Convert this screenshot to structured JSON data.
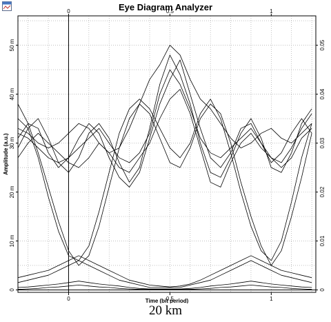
{
  "window": {
    "title": "Eye Diagram Analyzer",
    "icon": "app-window-icon"
  },
  "caption": "20 km",
  "chart_data": {
    "type": "line",
    "title": "Eye Diagram Analyzer",
    "xlabel": "Time (bit period)",
    "ylabel": "Amplitude (a.u.)",
    "xlim": [
      -0.25,
      1.22
    ],
    "ylim_left": [
      -0.5,
      56
    ],
    "ylim_right": [
      -0.0005,
      0.056
    ],
    "x_ticks_bottom": [
      {
        "value": 0,
        "label": "0"
      },
      {
        "value": 0.5,
        "label": "0.5"
      },
      {
        "value": 1,
        "label": "1"
      }
    ],
    "x_ticks_top": [
      {
        "value": 0,
        "label": "0"
      },
      {
        "value": 0.5,
        "label": "0.5"
      },
      {
        "value": 1,
        "label": "1"
      }
    ],
    "y_ticks_left": [
      {
        "value": 0,
        "label": "0"
      },
      {
        "value": 10,
        "label": "10 m"
      },
      {
        "value": 20,
        "label": "20 m"
      },
      {
        "value": 30,
        "label": "30 m"
      },
      {
        "value": 40,
        "label": "40 m"
      },
      {
        "value": 50,
        "label": "50 m"
      }
    ],
    "y_ticks_right": [
      {
        "value": 0,
        "label": "0"
      },
      {
        "value": 0.01,
        "label": "0.01"
      },
      {
        "value": 0.02,
        "label": "0.02"
      },
      {
        "value": 0.03,
        "label": "0.03"
      },
      {
        "value": 0.04,
        "label": "0.04"
      },
      {
        "value": 0.05,
        "label": "0.05"
      }
    ],
    "grid": true,
    "grid_style": "dotted",
    "trace_color": "#000000",
    "series": [
      {
        "x": [
          -0.25,
          -0.2,
          -0.15,
          -0.1,
          -0.05,
          0,
          0.05,
          0.1,
          0.15,
          0.2,
          0.25,
          0.3,
          0.35,
          0.4,
          0.45,
          0.5,
          0.55,
          0.6,
          0.65,
          0.7,
          0.75,
          0.8,
          0.85,
          0.9,
          0.95,
          1,
          1.05,
          1.1,
          1.15,
          1.2
        ],
        "y": [
          38,
          34,
          28,
          21,
          14,
          8,
          5,
          7,
          13,
          21,
          29,
          35,
          38,
          36,
          31,
          26,
          25,
          29,
          35,
          38,
          36,
          30,
          22,
          15,
          9,
          5,
          8,
          15,
          23,
          32
        ]
      },
      {
        "x": [
          -0.25,
          -0.2,
          -0.15,
          -0.1,
          -0.05,
          0,
          0.05,
          0.1,
          0.15,
          0.2,
          0.25,
          0.3,
          0.35,
          0.4,
          0.45,
          0.5,
          0.55,
          0.6,
          0.65,
          0.7,
          0.75,
          0.8,
          0.85,
          0.9,
          0.95,
          1,
          1.05,
          1.1,
          1.15,
          1.2
        ],
        "y": [
          35,
          33,
          27,
          19,
          12,
          7,
          6,
          9,
          16,
          24,
          32,
          37,
          39,
          37,
          33,
          29,
          27,
          30,
          36,
          39,
          35,
          28,
          20,
          13,
          8,
          6,
          10,
          18,
          27,
          34
        ]
      },
      {
        "x": [
          -0.25,
          -0.2,
          -0.15,
          -0.1,
          -0.05,
          0,
          0.05,
          0.1,
          0.15,
          0.2,
          0.25,
          0.3,
          0.35,
          0.4,
          0.45,
          0.5,
          0.55,
          0.6,
          0.65,
          0.7,
          0.75,
          0.8,
          0.85,
          0.9,
          0.95,
          1,
          1.05,
          1.1,
          1.15,
          1.2
        ],
        "y": [
          32,
          31,
          29,
          27,
          26,
          27,
          29,
          31,
          33,
          30,
          27,
          26,
          28,
          32,
          40,
          45,
          42,
          37,
          31,
          28,
          27,
          29,
          31,
          33,
          30,
          27,
          26,
          29,
          33,
          36
        ]
      },
      {
        "x": [
          -0.25,
          -0.2,
          -0.15,
          -0.1,
          -0.05,
          0,
          0.05,
          0.1,
          0.15,
          0.2,
          0.25,
          0.3,
          0.35,
          0.4,
          0.45,
          0.5,
          0.55,
          0.6,
          0.65,
          0.7,
          0.75,
          0.8,
          0.85,
          0.9,
          0.95,
          1,
          1.05,
          1.1,
          1.15,
          1.2
        ],
        "y": [
          29,
          33,
          35,
          31,
          26,
          24,
          27,
          32,
          34,
          31,
          26,
          22,
          25,
          33,
          42,
          48,
          44,
          38,
          30,
          24,
          23,
          27,
          32,
          35,
          31,
          25,
          24,
          28,
          34,
          37
        ]
      },
      {
        "x": [
          -0.25,
          -0.2,
          -0.15,
          -0.1,
          -0.05,
          0,
          0.05,
          0.1,
          0.15,
          0.2,
          0.25,
          0.3,
          0.35,
          0.4,
          0.45,
          0.5,
          0.55,
          0.6,
          0.65,
          0.7,
          0.75,
          0.8,
          0.85,
          0.9,
          0.95,
          1,
          1.05,
          1.1,
          1.15,
          1.2
        ],
        "y": [
          27,
          30,
          32,
          30,
          28,
          26,
          25,
          27,
          30,
          28,
          25,
          24,
          27,
          30,
          35,
          39,
          41,
          36,
          29,
          22,
          21,
          26,
          30,
          32,
          29,
          27,
          25,
          27,
          31,
          33
        ]
      },
      {
        "x": [
          -0.25,
          -0.2,
          -0.15,
          -0.1,
          -0.05,
          0,
          0.05,
          0.1,
          0.15,
          0.2,
          0.25,
          0.3,
          0.35,
          0.4,
          0.45,
          0.5,
          0.55,
          0.6,
          0.65,
          0.7,
          0.75,
          0.8,
          0.85,
          0.9,
          0.95,
          1,
          1.05,
          1.1,
          1.15,
          1.2
        ],
        "y": [
          31,
          34,
          33,
          28,
          25,
          27,
          31,
          34,
          32,
          27,
          23,
          21,
          24,
          31,
          38,
          43,
          47,
          40,
          33,
          27,
          25,
          28,
          33,
          34,
          30,
          26,
          28,
          32,
          35,
          32
        ]
      },
      {
        "x": [
          -0.25,
          -0.2,
          -0.15,
          -0.1,
          -0.05,
          0,
          0.05,
          0.1,
          0.15,
          0.2,
          0.25,
          0.3,
          0.35,
          0.4,
          0.45,
          0.5,
          0.55,
          0.6,
          0.65,
          0.7,
          0.75,
          0.8,
          0.85,
          0.9,
          0.95,
          1,
          1.05,
          1.1,
          1.15,
          1.2
        ],
        "y": [
          33,
          32,
          30,
          29,
          30,
          32,
          34,
          33,
          30,
          28,
          29,
          33,
          38,
          43,
          46,
          50,
          48,
          43,
          39,
          37,
          34,
          31,
          29,
          30,
          32,
          33,
          31,
          30,
          32,
          34
        ]
      },
      {
        "x": [
          -0.25,
          -0.2,
          -0.15,
          -0.1,
          -0.05,
          0,
          0.05,
          0.1,
          0.15,
          0.2,
          0.25,
          0.3,
          0.35,
          0.4,
          0.45,
          0.5,
          0.55,
          0.6,
          0.65,
          0.7,
          0.75,
          0.8,
          0.85,
          0.9,
          0.95,
          1,
          1.05,
          1.1,
          1.15,
          1.2
        ],
        "y": [
          1.5,
          2,
          2.5,
          3,
          4,
          5,
          6,
          5,
          4,
          3,
          2,
          1.5,
          1,
          0.5,
          0.5,
          0.5,
          0.5,
          1,
          1.5,
          2,
          3,
          4,
          5,
          6,
          5,
          4,
          3,
          2.5,
          2,
          1.5
        ]
      },
      {
        "x": [
          -0.25,
          -0.2,
          -0.15,
          -0.1,
          -0.05,
          0,
          0.05,
          0.1,
          0.15,
          0.2,
          0.25,
          0.3,
          0.35,
          0.4,
          0.45,
          0.5,
          0.55,
          0.6,
          0.65,
          0.7,
          0.75,
          0.8,
          0.85,
          0.9,
          0.95,
          1,
          1.05,
          1.1,
          1.15,
          1.2
        ],
        "y": [
          2.5,
          3,
          3.5,
          4,
          5,
          6,
          7,
          6,
          5,
          4,
          3,
          2,
          1.5,
          1,
          0.8,
          0.6,
          0.8,
          1.2,
          2,
          3,
          4,
          5,
          6,
          7,
          6,
          5,
          4,
          3.5,
          3,
          2.5
        ]
      },
      {
        "x": [
          -0.25,
          -0.2,
          -0.15,
          -0.1,
          -0.05,
          0,
          0.05,
          0.1,
          0.15,
          0.2,
          0.25,
          0.3,
          0.35,
          0.4,
          0.45,
          0.5,
          0.55,
          0.6,
          0.65,
          0.7,
          0.75,
          0.8,
          0.85,
          0.9,
          0.95,
          1,
          1.05,
          1.1,
          1.15,
          1.2
        ],
        "y": [
          0.5,
          0.6,
          0.8,
          1,
          1.2,
          1.5,
          1.8,
          1.5,
          1.2,
          1,
          0.8,
          0.5,
          0.3,
          0.2,
          0.2,
          0.2,
          0.2,
          0.3,
          0.5,
          0.8,
          1,
          1.2,
          1.5,
          1.8,
          1.5,
          1.2,
          1,
          0.8,
          0.6,
          0.5
        ]
      },
      {
        "x": [
          -0.25,
          -0.2,
          -0.15,
          -0.1,
          -0.05,
          0,
          0.05,
          0.1,
          0.15,
          0.2,
          0.25,
          0.3,
          0.35,
          0.4,
          0.45,
          0.5,
          0.55,
          0.6,
          0.65,
          0.7,
          0.75,
          0.8,
          0.85,
          0.9,
          0.95,
          1,
          1.05,
          1.1,
          1.15,
          1.2
        ],
        "y": [
          0.1,
          0.2,
          0.3,
          0.5,
          0.6,
          0.8,
          1,
          0.8,
          0.6,
          0.5,
          0.3,
          0.2,
          0.1,
          0.1,
          0.1,
          0.1,
          0.1,
          0.1,
          0.2,
          0.3,
          0.5,
          0.6,
          0.8,
          1,
          0.8,
          0.6,
          0.5,
          0.3,
          0.2,
          0.1
        ]
      }
    ]
  }
}
